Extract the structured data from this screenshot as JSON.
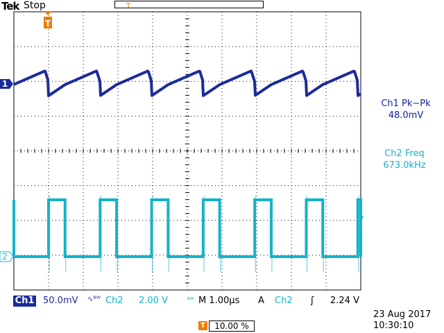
{
  "header": {
    "brand": "Tek",
    "run_state": "Stop"
  },
  "markers": {
    "ch1": "1",
    "ch2": "2",
    "trigger": "T"
  },
  "measurements": [
    {
      "label": "Ch1 Pk−Pk",
      "value": "48.0mV",
      "color": "#10239e"
    },
    {
      "label": "Ch2 Freq",
      "value": "673.0kHz",
      "color": "#14b3c9"
    }
  ],
  "status_bar": {
    "ch1_tag": "Ch1",
    "ch1_scale": "50.0mV",
    "ch1_coupling": "∿ᴮᵂ",
    "ch2_tag": "Ch2",
    "ch2_scale": "2.00 V",
    "ch2_bw": "ᴮᵂ",
    "time_scale": "M 1.00µs",
    "trigger_mode": "A",
    "trigger_source": "Ch2",
    "trigger_slope": "ʃ",
    "trigger_level": "2.24 V",
    "date": "23 Aug 2017",
    "time": "10:30:10",
    "trigger_position": "10.00 %"
  },
  "colors": {
    "ch1": "#1b2b9b",
    "ch2": "#14b3c9",
    "trigger": "#f07c00",
    "grid": "#000000"
  },
  "waveforms": {
    "ch2_frequency_khz": 673.0,
    "ch1_pk_pk_mv": 48.0
  }
}
